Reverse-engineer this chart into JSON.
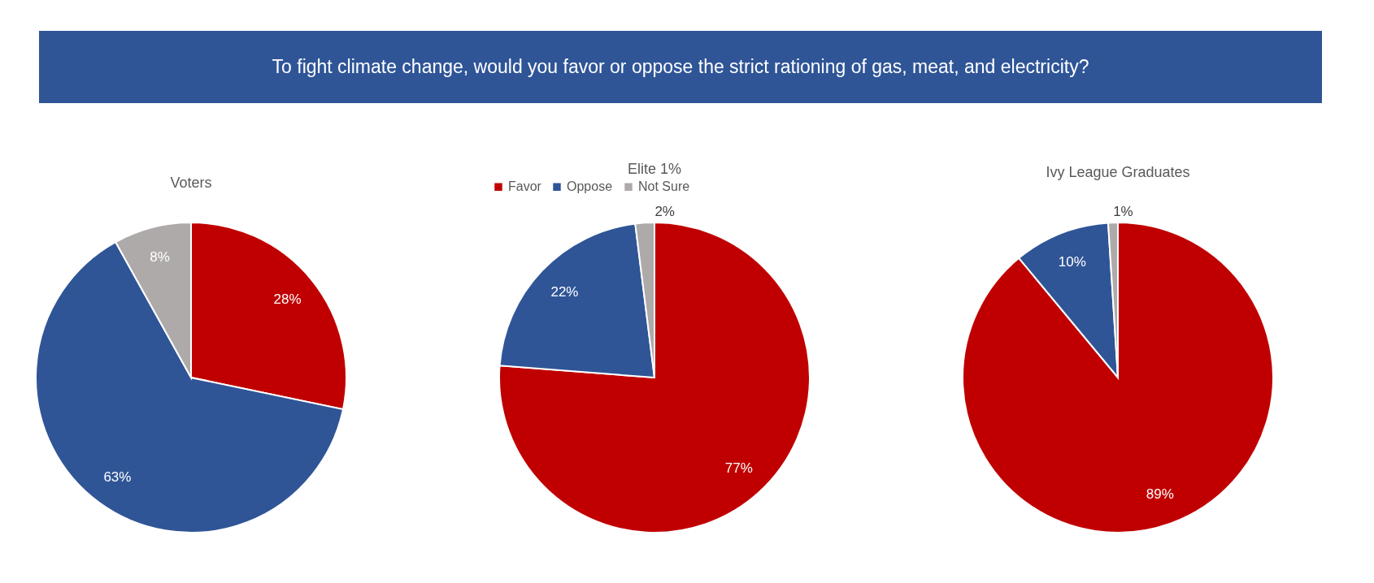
{
  "chart_data": [
    {
      "type": "pie",
      "title": "Voters",
      "annotations": [
        "To fight climate change, would you favor or oppose the strict rationing of gas, meat, and electricity?"
      ],
      "categories": [
        null,
        null,
        null
      ],
      "values": [
        28,
        63,
        8
      ],
      "colors": [
        "#c00000",
        "#2f5597",
        "#aeaaaa"
      ],
      "value_labels": [
        "28%",
        "63%",
        "8%"
      ],
      "legend": false
    },
    {
      "type": "pie",
      "title": "Elite 1%",
      "categories": [
        "Favor",
        "Oppose",
        "Not Sure"
      ],
      "values": [
        77,
        22,
        2
      ],
      "colors": [
        "#c00000",
        "#2f5597",
        "#aeaaaa"
      ],
      "value_labels": [
        "77%",
        "22%",
        "2%"
      ],
      "legend": "top"
    },
    {
      "type": "pie",
      "title": "Ivy League Graduates",
      "categories": [
        null,
        null,
        null
      ],
      "values": [
        89,
        10,
        1
      ],
      "colors": [
        "#c00000",
        "#2f5597",
        "#aeaaaa"
      ],
      "value_labels": [
        "89%",
        "10%",
        "1%"
      ],
      "legend": false
    }
  ]
}
